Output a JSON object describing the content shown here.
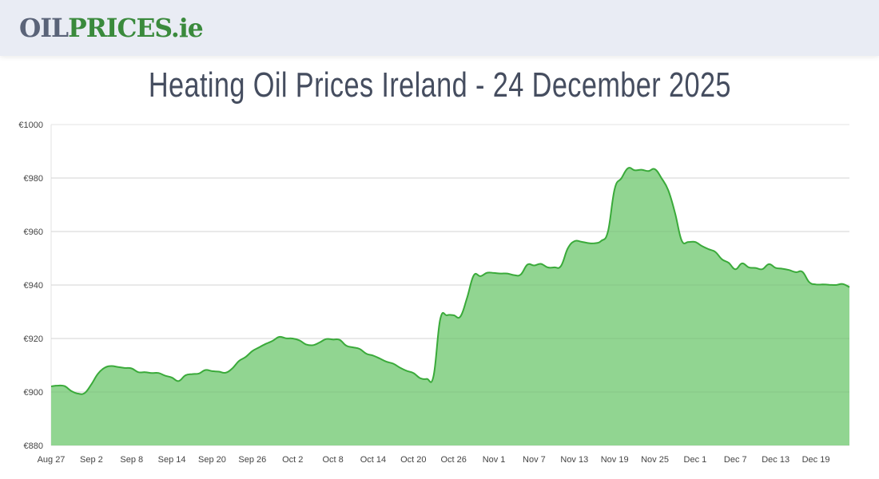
{
  "header": {
    "logo_part1": "OIL",
    "logo_part2": "PRICES.ie"
  },
  "page_title": "Heating Oil Prices Ireland - 24 December 2025",
  "colors": {
    "fill": "#91d591",
    "line": "#3aaa3a",
    "title": "#454d5f",
    "header_bg": "#e9ecf4"
  },
  "chart_data": {
    "type": "area",
    "ylim": [
      880,
      1000
    ],
    "y_ticks": [
      "€880",
      "€900",
      "€920",
      "€940",
      "€960",
      "€980",
      "€1000"
    ],
    "y_tick_values": [
      880,
      900,
      920,
      940,
      960,
      980,
      1000
    ],
    "x_ticks": [
      "Aug 27",
      "Sep 2",
      "Sep 8",
      "Sep 14",
      "Sep 20",
      "Sep 26",
      "Oct 2",
      "Oct 8",
      "Oct 14",
      "Oct 20",
      "Oct 26",
      "Nov 1",
      "Nov 7",
      "Nov 13",
      "Nov 19",
      "Nov 25",
      "Dec 1",
      "Dec 7",
      "Dec 13",
      "Dec 19"
    ],
    "grid": true,
    "x": [
      "Aug 27",
      "Aug 28",
      "Aug 29",
      "Aug 30",
      "Aug 31",
      "Sep 1",
      "Sep 2",
      "Sep 3",
      "Sep 4",
      "Sep 5",
      "Sep 6",
      "Sep 7",
      "Sep 8",
      "Sep 9",
      "Sep 10",
      "Sep 11",
      "Sep 12",
      "Sep 13",
      "Sep 14",
      "Sep 15",
      "Sep 16",
      "Sep 17",
      "Sep 18",
      "Sep 19",
      "Sep 20",
      "Sep 21",
      "Sep 22",
      "Sep 23",
      "Sep 24",
      "Sep 25",
      "Sep 26",
      "Sep 27",
      "Sep 28",
      "Sep 29",
      "Sep 30",
      "Oct 1",
      "Oct 2",
      "Oct 3",
      "Oct 4",
      "Oct 5",
      "Oct 6",
      "Oct 7",
      "Oct 8",
      "Oct 9",
      "Oct 10",
      "Oct 11",
      "Oct 12",
      "Oct 13",
      "Oct 14",
      "Oct 15",
      "Oct 16",
      "Oct 17",
      "Oct 18",
      "Oct 19",
      "Oct 20",
      "Oct 21",
      "Oct 22",
      "Oct 23",
      "Oct 24",
      "Oct 25",
      "Oct 26",
      "Oct 27",
      "Oct 28",
      "Oct 29",
      "Oct 30",
      "Oct 31",
      "Nov 1",
      "Nov 2",
      "Nov 3",
      "Nov 4",
      "Nov 5",
      "Nov 6",
      "Nov 7",
      "Nov 8",
      "Nov 9",
      "Nov 10",
      "Nov 11",
      "Nov 12",
      "Nov 13",
      "Nov 14",
      "Nov 15",
      "Nov 16",
      "Nov 17",
      "Nov 18",
      "Nov 19",
      "Nov 20",
      "Nov 21",
      "Nov 22",
      "Nov 23",
      "Nov 24",
      "Nov 25",
      "Nov 26",
      "Nov 27",
      "Nov 28",
      "Nov 29",
      "Nov 30",
      "Dec 1",
      "Dec 2",
      "Dec 3",
      "Dec 4",
      "Dec 5",
      "Dec 6",
      "Dec 7",
      "Dec 8",
      "Dec 9",
      "Dec 10",
      "Dec 11",
      "Dec 12",
      "Dec 13",
      "Dec 14",
      "Dec 15",
      "Dec 16",
      "Dec 17",
      "Dec 18",
      "Dec 19",
      "Dec 20",
      "Dec 21",
      "Dec 22",
      "Dec 23",
      "Dec 24"
    ],
    "values": [
      902.1,
      902.4,
      902.2,
      900.4,
      899.4,
      899.6,
      902.9,
      906.9,
      909.1,
      909.7,
      909.3,
      909.0,
      908.8,
      907.4,
      907.4,
      907.1,
      907.1,
      906.1,
      905.4,
      904.1,
      906.2,
      906.7,
      906.9,
      908.2,
      907.8,
      907.6,
      907.2,
      908.8,
      911.6,
      913.1,
      915.3,
      916.7,
      918.0,
      919.1,
      920.6,
      920.1,
      920.0,
      919.3,
      917.8,
      917.5,
      918.5,
      919.8,
      919.6,
      919.5,
      917.3,
      916.7,
      916.1,
      914.3,
      913.6,
      912.5,
      911.3,
      910.6,
      909.1,
      907.9,
      907.1,
      905.2,
      904.9,
      905.9,
      927.2,
      928.7,
      928.7,
      928.2,
      935.2,
      943.6,
      943.3,
      944.6,
      944.5,
      944.3,
      944.3,
      943.7,
      943.9,
      947.6,
      947.3,
      947.9,
      946.6,
      946.6,
      947.1,
      953.6,
      956.4,
      956.2,
      955.7,
      955.6,
      956.5,
      960.0,
      975.9,
      979.9,
      983.7,
      982.9,
      983.1,
      982.6,
      983.3,
      979.9,
      975.4,
      967.0,
      956.6,
      956.1,
      956.1,
      954.6,
      953.4,
      952.4,
      949.6,
      948.3,
      945.9,
      948.1,
      946.6,
      946.4,
      945.9,
      947.8,
      946.4,
      946.1,
      945.6,
      944.8,
      944.9,
      941.1,
      940.2,
      940.2,
      940.1,
      940.0,
      940.4,
      939.2
    ]
  }
}
